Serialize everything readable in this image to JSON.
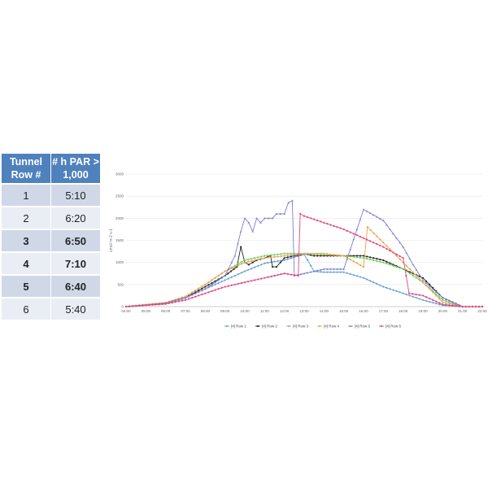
{
  "table": {
    "headers": [
      "Tunnel Row #",
      "# h PAR > 1,000"
    ],
    "rows": [
      {
        "row": "1",
        "hours": "5:10",
        "bold": false
      },
      {
        "row": "2",
        "hours": "6:20",
        "bold": false
      },
      {
        "row": "3",
        "hours": "6:50",
        "bold": true
      },
      {
        "row": "4",
        "hours": "7:10",
        "bold": true
      },
      {
        "row": "5",
        "hours": "6:40",
        "bold": true
      },
      {
        "row": "6",
        "hours": "5:40",
        "bold": false
      }
    ]
  },
  "chart_data": {
    "type": "line",
    "title": "",
    "xlabel": "",
    "ylabel": "umol m-2 s-1",
    "ylim": [
      0,
      3000
    ],
    "y_ticks": [
      "0",
      "500",
      "1000",
      "1500",
      "2000",
      "2500",
      "3000"
    ],
    "x_ticks": [
      "04:00",
      "05:00",
      "06:00",
      "07:00",
      "08:00",
      "09:00",
      "10:00",
      "11:00",
      "12:00",
      "13:00",
      "14:00",
      "15:00",
      "16:00",
      "17:00",
      "18:00",
      "19:00",
      "20:00",
      "21:00",
      "22:00"
    ],
    "x_range_hours": [
      4,
      22
    ],
    "legend_position": "bottom",
    "series": [
      {
        "name": "[4] Row 1",
        "color": "#5b9bd5",
        "marker": "diamond",
        "x": [
          4,
          6,
          7,
          8,
          9,
          10,
          11,
          11.5,
          12,
          12.5,
          13,
          13.5,
          14,
          15,
          16,
          17,
          18,
          19,
          20,
          21,
          22
        ],
        "y": [
          0,
          80,
          200,
          400,
          600,
          800,
          980,
          1020,
          1050,
          1120,
          1180,
          800,
          780,
          780,
          650,
          450,
          300,
          150,
          30,
          0,
          0
        ]
      },
      {
        "name": "[4] Row 2",
        "color": "#262626",
        "marker": "dot",
        "x": [
          4,
          6,
          7,
          8,
          9,
          9.6,
          9.8,
          10,
          10.2,
          10.6,
          11,
          11.3,
          11.4,
          11.6,
          12,
          12.5,
          13,
          13.5,
          14,
          15,
          16,
          17,
          18,
          19,
          20,
          21,
          22
        ],
        "y": [
          0,
          80,
          200,
          450,
          700,
          900,
          1350,
          1000,
          950,
          1050,
          1100,
          1150,
          900,
          900,
          1100,
          1150,
          1200,
          1150,
          1150,
          1150,
          1150,
          1050,
          850,
          650,
          200,
          0,
          0
        ]
      },
      {
        "name": "[4] Row 3",
        "color": "#70d060",
        "marker": "dot",
        "x": [
          4,
          6,
          7,
          8,
          9,
          10,
          11,
          12,
          13,
          14,
          15,
          16,
          17,
          18,
          19,
          20,
          21,
          22
        ],
        "y": [
          0,
          90,
          230,
          500,
          800,
          1050,
          1150,
          1200,
          1200,
          1180,
          1150,
          1100,
          1000,
          850,
          550,
          150,
          0,
          0
        ]
      },
      {
        "name": "[4] Row 4",
        "color": "#f0a04b",
        "marker": "dot",
        "x": [
          4,
          6,
          7,
          8,
          9,
          10,
          11,
          12,
          13,
          14,
          15,
          16,
          16.2,
          17,
          18,
          19,
          20,
          21,
          22
        ],
        "y": [
          0,
          90,
          230,
          500,
          800,
          1000,
          1100,
          1150,
          1200,
          1200,
          1150,
          900,
          1800,
          1450,
          1000,
          550,
          100,
          0,
          0
        ]
      },
      {
        "name": "[4] Row 5",
        "color": "#7b7fd4",
        "marker": "triangle",
        "x": [
          4,
          6,
          7,
          8,
          9,
          9.5,
          9.8,
          10,
          10.2,
          10.4,
          10.6,
          10.8,
          11,
          11.4,
          11.6,
          12,
          12.2,
          12.4,
          12.5,
          13,
          14,
          15,
          16,
          17,
          18,
          18.5,
          19,
          20,
          21,
          22
        ],
        "y": [
          0,
          80,
          200,
          400,
          700,
          1150,
          1700,
          2000,
          1900,
          1700,
          2000,
          1900,
          2000,
          2000,
          2100,
          2100,
          2350,
          2400,
          700,
          750,
          850,
          850,
          2200,
          1950,
          1350,
          950,
          600,
          200,
          0,
          0
        ]
      },
      {
        "name": "[4] Row 6",
        "color": "#e4467a",
        "marker": "dot",
        "x": [
          4,
          6,
          7,
          8,
          9,
          10,
          11,
          12,
          12.7,
          12.8,
          13,
          14,
          15,
          16,
          17,
          18,
          18.3,
          19,
          20,
          21,
          22
        ],
        "y": [
          0,
          60,
          150,
          300,
          450,
          550,
          650,
          750,
          700,
          2100,
          2050,
          1900,
          1750,
          1550,
          1350,
          1100,
          300,
          250,
          50,
          0,
          0
        ]
      }
    ]
  }
}
